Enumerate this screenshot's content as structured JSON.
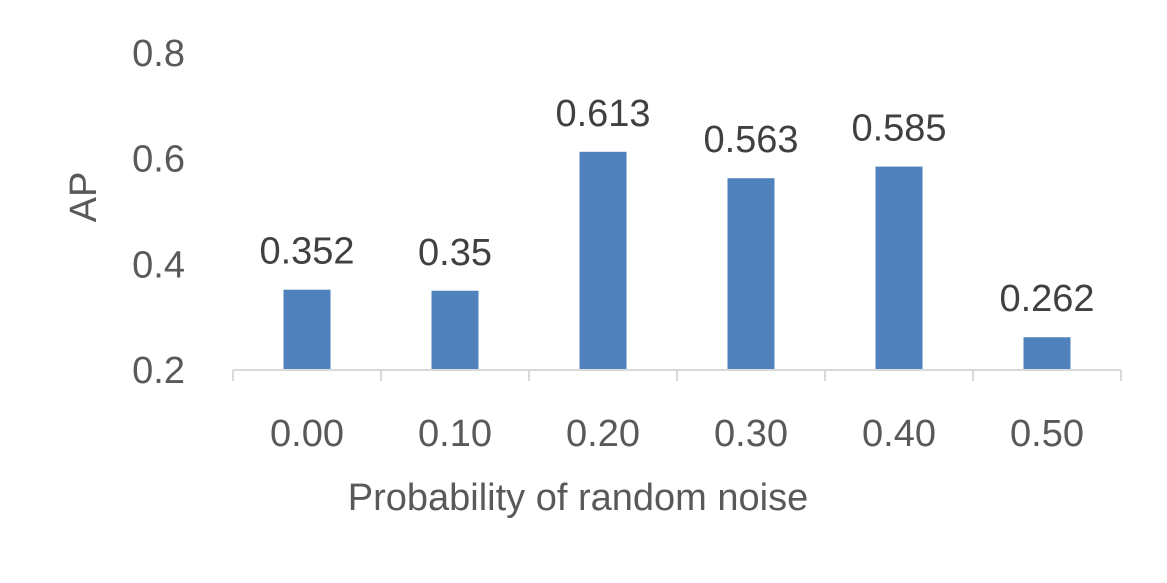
{
  "chart_data": {
    "type": "bar",
    "title": "",
    "xlabel": "Probability of random noise",
    "ylabel": "AP",
    "categories": [
      "0.00",
      "0.10",
      "0.20",
      "0.30",
      "0.40",
      "0.50"
    ],
    "values": [
      0.352,
      0.35,
      0.613,
      0.563,
      0.585,
      0.262
    ],
    "data_labels": [
      "0.352",
      "0.35",
      "0.613",
      "0.563",
      "0.585",
      "0.262"
    ],
    "ylim": [
      0.2,
      0.8
    ],
    "yticks": [
      "0.2",
      "0.4",
      "0.6",
      "0.8"
    ],
    "ytick_values": [
      0.2,
      0.4,
      0.6,
      0.8
    ],
    "grid": false,
    "legend": "none",
    "colors": {
      "bar": "#4f81bd",
      "axis": "#d9d9d9",
      "text": "#595959",
      "data_label": "#404040"
    }
  }
}
